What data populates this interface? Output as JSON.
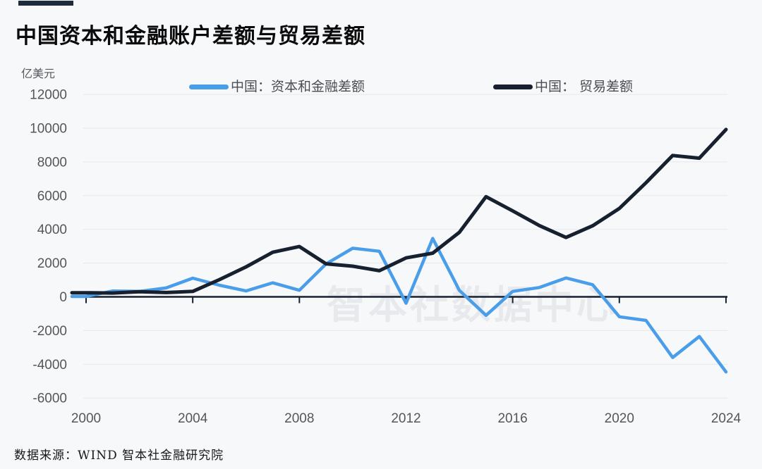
{
  "title": "中国资本和金融账户差额与贸易差额",
  "unit_label": "亿美元",
  "legend": [
    {
      "label": "中国：资本和金融差额",
      "color": "#4a9ee9"
    },
    {
      "label": "中国： 贸易差额",
      "color": "#16202f"
    }
  ],
  "watermark": "智本社数据中心",
  "source": "数据来源：WIND 智本社金融研究院",
  "colors": {
    "background": "#f7f8fa",
    "accent_bar": "#1d2b3d",
    "capital_line": "#4a9ee9",
    "trade_line": "#16202f",
    "gridline": "#e5e7ea",
    "axis": "#16202f",
    "tick_label": "#54565a",
    "watermark": "#e8e9ec"
  },
  "chart_data": {
    "type": "line",
    "title": "中国资本和金融账户差额与贸易差额",
    "ylabel": "亿美元",
    "xlabel": "",
    "grid": true,
    "legend_position": "top",
    "ylim": [
      -6000,
      12000
    ],
    "y_ticks": [
      12000,
      10000,
      8000,
      6000,
      4000,
      2000,
      0,
      -2000,
      -4000,
      -6000
    ],
    "x": [
      2000,
      2001,
      2002,
      2003,
      2004,
      2005,
      2006,
      2007,
      2008,
      2009,
      2010,
      2011,
      2012,
      2013,
      2014,
      2015,
      2016,
      2017,
      2018,
      2019,
      2020,
      2021,
      2022,
      2023,
      2024
    ],
    "x_tick_labels": [
      "2000",
      "2004",
      "2008",
      "2012",
      "2016",
      "2020",
      "2024"
    ],
    "series": [
      {
        "name": "中国：资本和金融差额",
        "color": "#4a9ee9",
        "values": [
          20,
          348,
          323,
          527,
          1107,
          690,
          350,
          830,
          390,
          1950,
          2880,
          2700,
          -380,
          3460,
          380,
          -1100,
          320,
          550,
          1120,
          720,
          -1180,
          -1400,
          -3600,
          -2350,
          -4450
        ]
      },
      {
        "name": "中国： 贸易差额",
        "color": "#16202f",
        "values": [
          241,
          226,
          304,
          255,
          321,
          1020,
          1775,
          2643,
          2981,
          1957,
          1815,
          1549,
          2311,
          2590,
          3825,
          5939,
          5097,
          4225,
          3518,
          4215,
          5240,
          6764,
          8380,
          8221,
          9921
        ]
      }
    ]
  }
}
